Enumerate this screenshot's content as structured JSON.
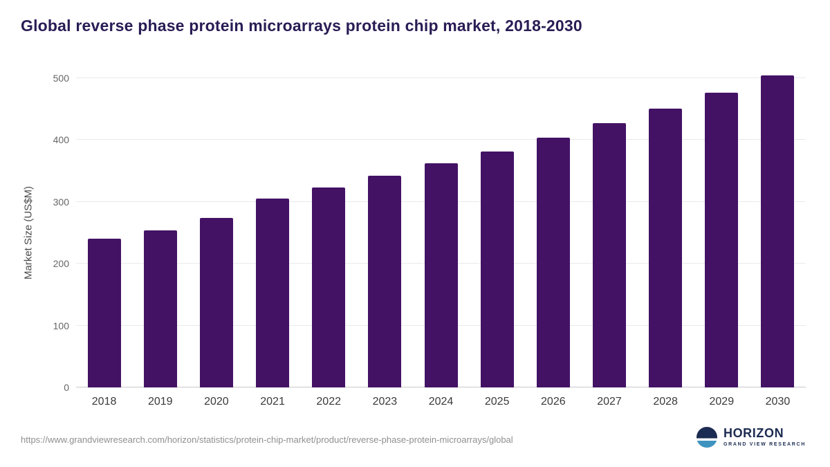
{
  "title": "Global reverse phase protein microarrays protein chip market, 2018-2030",
  "chart_data": {
    "type": "bar",
    "title": "Global reverse phase protein microarrays protein chip market, 2018-2030",
    "categories": [
      "2018",
      "2019",
      "2020",
      "2021",
      "2022",
      "2023",
      "2024",
      "2025",
      "2026",
      "2027",
      "2028",
      "2029",
      "2030"
    ],
    "values": [
      241,
      254,
      274,
      305,
      323,
      342,
      362,
      382,
      404,
      427,
      451,
      477,
      504
    ],
    "xlabel": "",
    "ylabel": "Market Size (US$M)",
    "ylim": [
      0,
      500
    ],
    "yticks": [
      0,
      100,
      200,
      300,
      400,
      500
    ],
    "grid": "horizontal",
    "legend": "none",
    "bar_color": "#431265"
  },
  "footer": {
    "source_url": "https://www.grandviewresearch.com/horizon/statistics/protein-chip-market/product/reverse-phase-protein-microarrays/global",
    "logo_title": "HORIZON",
    "logo_subtitle": "GRAND VIEW RESEARCH"
  },
  "colors": {
    "bar": "#431265",
    "title_text": "#2a1c55",
    "grid_line": "#e9e9e9",
    "axis_line": "#c9c9c9",
    "logo_navy": "#1c2b51"
  }
}
